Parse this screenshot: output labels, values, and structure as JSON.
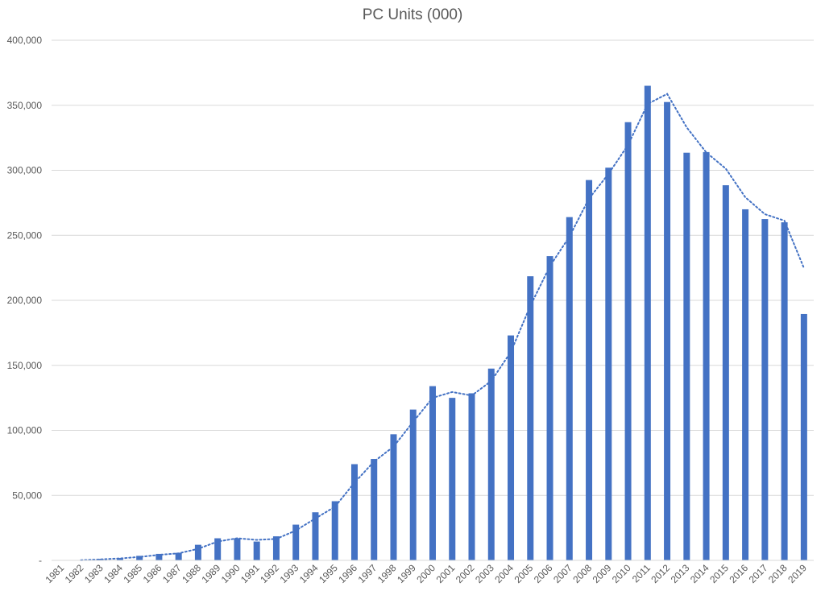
{
  "chart_data": {
    "type": "bar",
    "title": "PC Units (000)",
    "xlabel": "",
    "ylabel": "",
    "ylim": [
      0,
      400000
    ],
    "y_ticks": [
      0,
      50000,
      100000,
      150000,
      200000,
      250000,
      300000,
      350000,
      400000
    ],
    "y_tick_labels": [
      "-",
      "50,000",
      "100,000",
      "150,000",
      "200,000",
      "250,000",
      "300,000",
      "350,000",
      "400,000"
    ],
    "grid": "horizontal",
    "categories": [
      "1981",
      "1982",
      "1983",
      "1984",
      "1985",
      "1986",
      "1987",
      "1988",
      "1989",
      "1990",
      "1991",
      "1992",
      "1993",
      "1994",
      "1995",
      "1996",
      "1997",
      "1998",
      "1999",
      "2000",
      "2001",
      "2002",
      "2003",
      "2004",
      "2005",
      "2006",
      "2007",
      "2008",
      "2009",
      "2010",
      "2011",
      "2012",
      "2013",
      "2014",
      "2015",
      "2016",
      "2017",
      "2018",
      "2019"
    ],
    "series": [
      {
        "name": "",
        "type": "bar",
        "color": "#4472C4",
        "values": [
          0,
          300,
          1200,
          1800,
          3500,
          5000,
          5800,
          12000,
          17000,
          17000,
          14500,
          18500,
          27500,
          37000,
          45500,
          74000,
          78000,
          97000,
          116000,
          134000,
          125000,
          128500,
          147500,
          173000,
          218500,
          234000,
          264000,
          292500,
          302000,
          337000,
          365000,
          352500,
          313500,
          314000,
          288500,
          270000,
          262500,
          260000,
          189500
        ]
      },
      {
        "name": "",
        "type": "line",
        "style": "dotted",
        "color": "#4472C4",
        "values": [
          null,
          150,
          750,
          1500,
          2650,
          4250,
          5400,
          8900,
          14500,
          17000,
          15750,
          16500,
          23000,
          32250,
          41250,
          59750,
          76000,
          87500,
          106500,
          125000,
          129500,
          126750,
          138000,
          160250,
          195750,
          226250,
          249000,
          278250,
          297250,
          319500,
          351000,
          358750,
          333000,
          313750,
          301250,
          279250,
          266250,
          261250,
          224750
        ]
      }
    ]
  }
}
